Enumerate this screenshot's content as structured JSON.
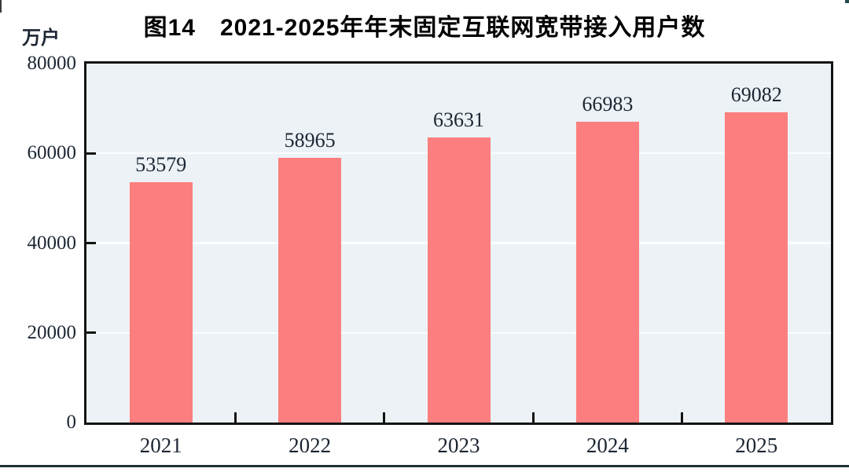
{
  "chart_data": {
    "type": "bar",
    "title": "图14　2021-2025年年末固定互联网宽带接入用户数",
    "unit_label": "万户",
    "categories": [
      "2021",
      "2022",
      "2023",
      "2024",
      "2025"
    ],
    "values": [
      53579,
      58965,
      63631,
      66983,
      69082
    ],
    "data_labels": [
      "53579",
      "58965",
      "63631",
      "66983",
      "69082"
    ],
    "xlabel": "",
    "ylabel": "万户",
    "ylim": [
      0,
      80000
    ],
    "yticks": [
      0,
      20000,
      40000,
      60000,
      80000
    ],
    "ytick_labels": [
      "0",
      "20000",
      "40000",
      "60000",
      "80000"
    ],
    "grid": "horizontal",
    "legend": "none",
    "colors": {
      "bar_fill": "#fd7e7e",
      "plot_background": "#ecf2f6",
      "axis_frame": "#141414",
      "gridline": "#fafdfe",
      "text": "#1c2633",
      "title_text": "#000000"
    }
  }
}
